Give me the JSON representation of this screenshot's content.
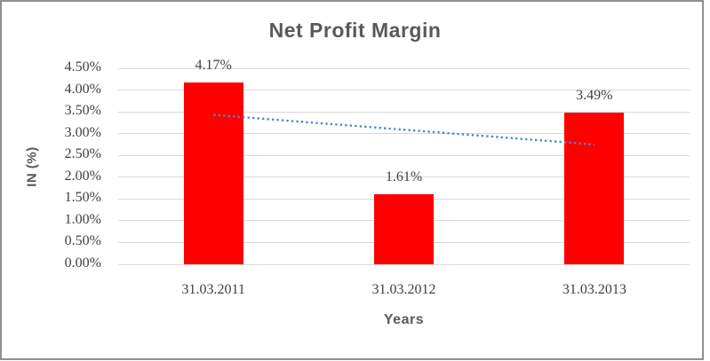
{
  "chart_data": {
    "type": "bar",
    "title": "Net Profit Margin",
    "categories": [
      "31.03.2011",
      "31.03.2012",
      "31.03.2013"
    ],
    "values": [
      4.17,
      1.61,
      3.49
    ],
    "data_labels": [
      "4.17%",
      "1.61%",
      "3.49%"
    ],
    "xlabel": "Years",
    "ylabel": "IN (%)",
    "ylim": [
      0,
      4.5
    ],
    "ytick_step": 0.5,
    "yticks": [
      "0.00%",
      "0.50%",
      "1.00%",
      "1.50%",
      "2.00%",
      "2.50%",
      "3.00%",
      "3.50%",
      "4.00%",
      "4.50%"
    ],
    "grid": true,
    "legend": "none",
    "bar_color": "#ff0000",
    "gridline_color": "#d9d9d9",
    "trendline": {
      "type": "linear",
      "style": "dotted",
      "color": "#4f86c7",
      "start_value": 3.43,
      "end_value": 2.75
    },
    "text_colors": {
      "title": "#595959",
      "axis_title": "#595959",
      "tick_label": "#404040",
      "data_label": "#3f3f3f"
    }
  }
}
